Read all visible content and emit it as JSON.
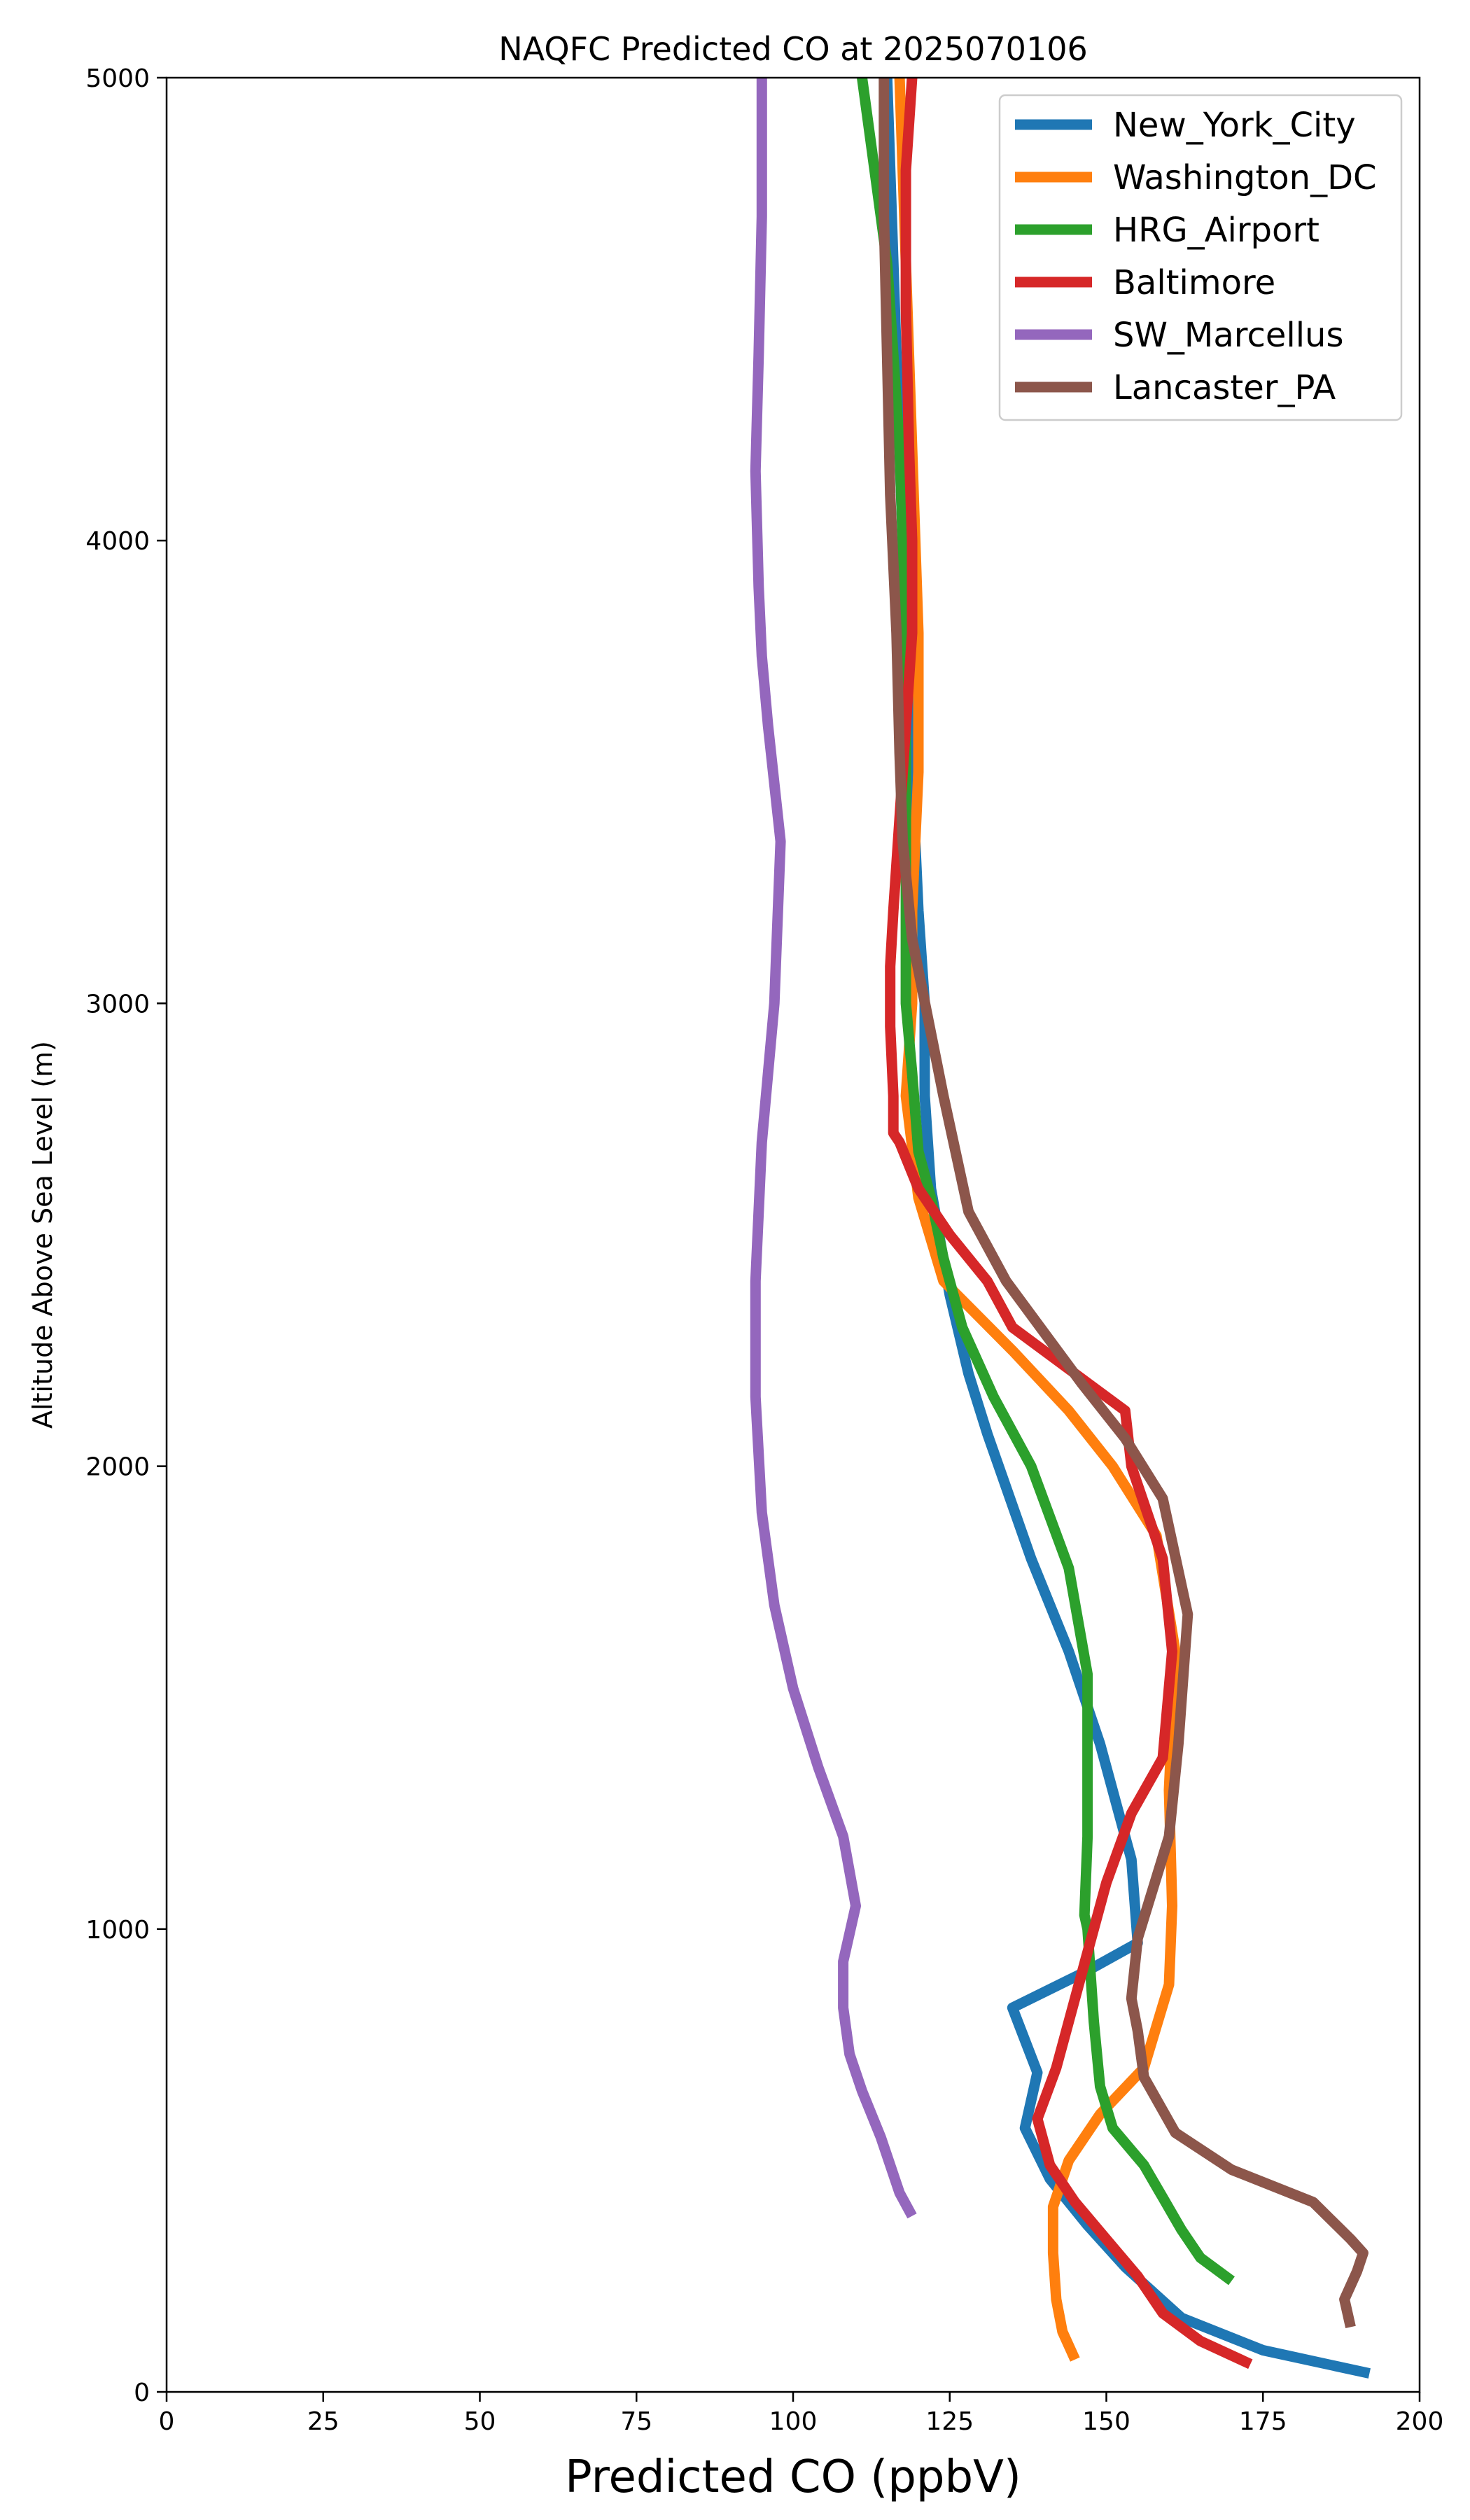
{
  "chart_data": {
    "type": "line",
    "title": "NAQFC Predicted CO at 2025070106",
    "xlabel": "Predicted CO (ppbV)",
    "ylabel": "Altitude Above Sea Level (m)",
    "xlim": [
      0,
      200
    ],
    "ylim": [
      0,
      5000
    ],
    "xticks": [
      "0",
      "25",
      "50",
      "75",
      "100",
      "125",
      "150",
      "175",
      "200"
    ],
    "yticks": [
      "0",
      "1000",
      "2000",
      "3000",
      "4000",
      "5000"
    ],
    "grid": false,
    "legend": "top-right",
    "series": [
      {
        "name": "New_York_City",
        "color": "#1f77b4",
        "points": [
          [
            192,
            40
          ],
          [
            175,
            90
          ],
          [
            162,
            160
          ],
          [
            153,
            270
          ],
          [
            147,
            360
          ],
          [
            141,
            460
          ],
          [
            137,
            570
          ],
          [
            139,
            690
          ],
          [
            135,
            830
          ],
          [
            147,
            910
          ],
          [
            155,
            970
          ],
          [
            154,
            1150
          ],
          [
            149,
            1400
          ],
          [
            144,
            1600
          ],
          [
            138,
            1800
          ],
          [
            131,
            2070
          ],
          [
            128,
            2200
          ],
          [
            125,
            2370
          ],
          [
            122,
            2600
          ],
          [
            121,
            2800
          ],
          [
            121,
            3000
          ],
          [
            120,
            3200
          ],
          [
            119,
            3500
          ],
          [
            118,
            3800
          ],
          [
            117,
            4200
          ],
          [
            116,
            4600
          ],
          [
            115,
            5000
          ]
        ]
      },
      {
        "name": "Washington_DC",
        "color": "#ff7f0e",
        "points": [
          [
            145,
            70
          ],
          [
            143,
            130
          ],
          [
            142,
            200
          ],
          [
            141.5,
            300
          ],
          [
            141.5,
            400
          ],
          [
            144,
            500
          ],
          [
            149,
            600
          ],
          [
            156,
            700
          ],
          [
            160,
            880
          ],
          [
            160.5,
            1050
          ],
          [
            160,
            1300
          ],
          [
            161,
            1600
          ],
          [
            158,
            1850
          ],
          [
            151,
            2000
          ],
          [
            144,
            2120
          ],
          [
            135,
            2250
          ],
          [
            124,
            2400
          ],
          [
            120,
            2580
          ],
          [
            118,
            2800
          ],
          [
            119,
            3000
          ],
          [
            119,
            3200
          ],
          [
            120,
            3500
          ],
          [
            120,
            3800
          ],
          [
            119,
            4200
          ],
          [
            118,
            4600
          ],
          [
            117,
            5000
          ]
        ]
      },
      {
        "name": "HRG_Airport",
        "color": "#2ca02c",
        "points": [
          [
            170,
            240
          ],
          [
            165,
            290
          ],
          [
            162,
            350
          ],
          [
            159,
            420
          ],
          [
            156,
            490
          ],
          [
            151,
            570
          ],
          [
            149,
            660
          ],
          [
            148,
            800
          ],
          [
            147,
            1000
          ],
          [
            146.5,
            1030
          ],
          [
            147,
            1200
          ],
          [
            147,
            1350
          ],
          [
            147,
            1550
          ],
          [
            144,
            1780
          ],
          [
            138,
            2000
          ],
          [
            132,
            2150
          ],
          [
            127,
            2300
          ],
          [
            124,
            2450
          ],
          [
            122,
            2580
          ],
          [
            120,
            2680
          ],
          [
            119,
            2850
          ],
          [
            118,
            3000
          ],
          [
            118,
            3200
          ],
          [
            118,
            3500
          ],
          [
            118,
            3800
          ],
          [
            117,
            4200
          ],
          [
            115,
            4600
          ],
          [
            111,
            5000
          ]
        ]
      },
      {
        "name": "Baltimore",
        "color": "#d62728",
        "points": [
          [
            173,
            60
          ],
          [
            165,
            110
          ],
          [
            159,
            170
          ],
          [
            155,
            250
          ],
          [
            150,
            330
          ],
          [
            145,
            410
          ],
          [
            141,
            490
          ],
          [
            139,
            590
          ],
          [
            142,
            700
          ],
          [
            144,
            800
          ],
          [
            147,
            950
          ],
          [
            150,
            1100
          ],
          [
            154,
            1250
          ],
          [
            159,
            1370
          ],
          [
            160.5,
            1600
          ],
          [
            159,
            1800
          ],
          [
            154,
            2000
          ],
          [
            153,
            2120
          ],
          [
            145,
            2200
          ],
          [
            135,
            2300
          ],
          [
            131,
            2400
          ],
          [
            125,
            2500
          ],
          [
            120,
            2600
          ],
          [
            117,
            2700
          ],
          [
            116,
            2720
          ],
          [
            116,
            2800
          ],
          [
            115.5,
            2950
          ],
          [
            115.5,
            3080
          ],
          [
            116,
            3200
          ],
          [
            117,
            3400
          ],
          [
            118,
            3600
          ],
          [
            119,
            3800
          ],
          [
            119,
            4000
          ],
          [
            118.5,
            4200
          ],
          [
            118,
            4500
          ],
          [
            118,
            4800
          ],
          [
            119,
            5000
          ]
        ]
      },
      {
        "name": "SW_Marcellus",
        "color": "#9467bd",
        "points": [
          [
            119,
            380
          ],
          [
            117,
            430
          ],
          [
            114,
            550
          ],
          [
            111,
            650
          ],
          [
            109,
            730
          ],
          [
            108,
            830
          ],
          [
            108,
            930
          ],
          [
            110,
            1050
          ],
          [
            108,
            1200
          ],
          [
            104,
            1350
          ],
          [
            100,
            1520
          ],
          [
            97,
            1700
          ],
          [
            95,
            1900
          ],
          [
            94,
            2150
          ],
          [
            94,
            2400
          ],
          [
            95,
            2700
          ],
          [
            97,
            3000
          ],
          [
            98,
            3350
          ],
          [
            96,
            3600
          ],
          [
            95,
            3750
          ],
          [
            94.5,
            3900
          ],
          [
            94,
            4150
          ],
          [
            94.5,
            4400
          ],
          [
            95,
            4700
          ],
          [
            95,
            5000
          ]
        ]
      },
      {
        "name": "Lancaster_PA",
        "color": "#8c564b",
        "points": [
          [
            189,
            140
          ],
          [
            188,
            200
          ],
          [
            190,
            260
          ],
          [
            191,
            300
          ],
          [
            189,
            330
          ],
          [
            183,
            410
          ],
          [
            170,
            480
          ],
          [
            161,
            560
          ],
          [
            156,
            680
          ],
          [
            155,
            780
          ],
          [
            154,
            850
          ],
          [
            155,
            980
          ],
          [
            160,
            1200
          ],
          [
            161.5,
            1400
          ],
          [
            163,
            1680
          ],
          [
            159,
            1930
          ],
          [
            153,
            2060
          ],
          [
            146,
            2180
          ],
          [
            134,
            2400
          ],
          [
            128,
            2550
          ],
          [
            124,
            2800
          ],
          [
            119,
            3140
          ],
          [
            117.5,
            3350
          ],
          [
            117,
            3540
          ],
          [
            116.5,
            3800
          ],
          [
            115.5,
            4100
          ],
          [
            115,
            4400
          ],
          [
            114.5,
            4700
          ],
          [
            114.5,
            5000
          ]
        ]
      }
    ]
  }
}
